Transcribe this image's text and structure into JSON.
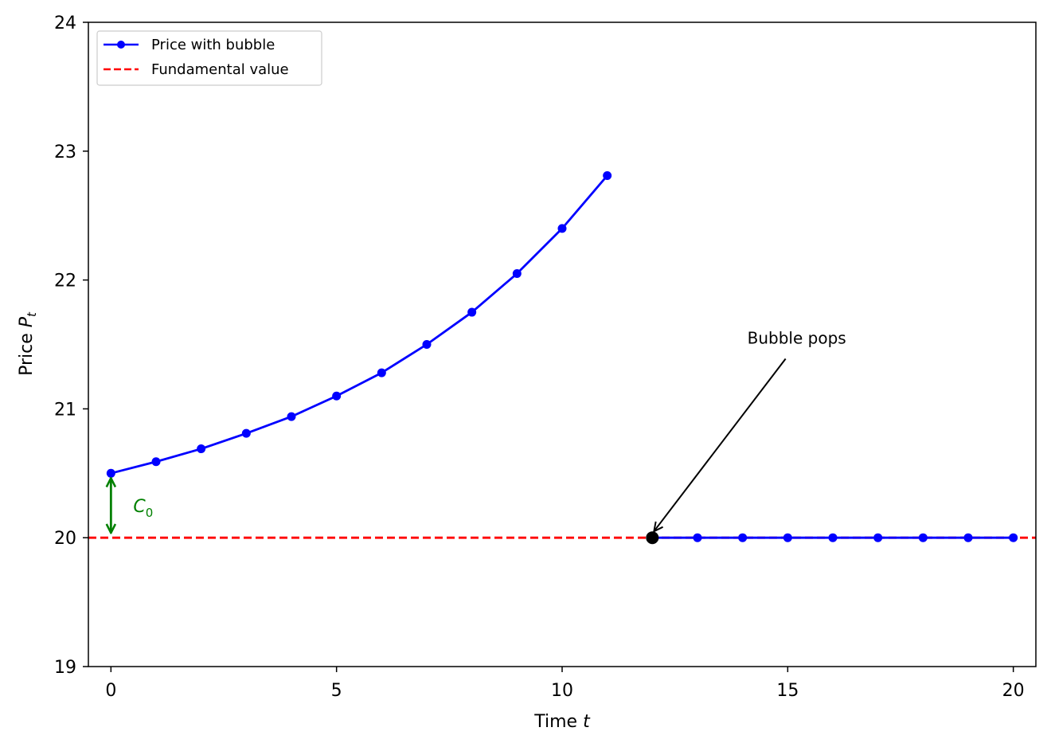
{
  "chart_data": {
    "type": "line",
    "xlabel": {
      "text": "Time ",
      "var": "t"
    },
    "ylabel": {
      "text": "Price ",
      "var": "P",
      "sub": "t"
    },
    "xlim": [
      -0.5,
      20.5
    ],
    "ylim": [
      19,
      24
    ],
    "xticks": [
      0,
      5,
      10,
      15,
      20
    ],
    "yticks": [
      19,
      20,
      21,
      22,
      23,
      24
    ],
    "grid": false,
    "legend_position": "top-left",
    "series": [
      {
        "name": "Price with bubble",
        "color": "#0000ff",
        "style": "solid-with-markers",
        "segments": [
          {
            "x": [
              0,
              1,
              2,
              3,
              4,
              5,
              6,
              7,
              8,
              9,
              10,
              11
            ],
            "y": [
              20.5,
              20.59,
              20.69,
              20.81,
              20.94,
              21.1,
              21.28,
              21.5,
              21.75,
              22.05,
              22.4,
              22.81
            ]
          },
          {
            "x": [
              12,
              13,
              14,
              15,
              16,
              17,
              18,
              19,
              20
            ],
            "y": [
              20,
              20,
              20,
              20,
              20,
              20,
              20,
              20,
              20
            ]
          }
        ]
      },
      {
        "name": "Fundamental value",
        "color": "#ff0000",
        "style": "dashed",
        "y": 20
      }
    ],
    "annotations": {
      "pop_point": {
        "x": 12,
        "y": 20,
        "color": "#000000"
      },
      "pop_text": {
        "text": "Bubble pops",
        "x": 15.2,
        "y": 21.5
      },
      "c0": {
        "x": 0,
        "y_from": 20,
        "y_to": 20.5,
        "label": "C",
        "sub": "0",
        "color": "#008000"
      }
    }
  }
}
